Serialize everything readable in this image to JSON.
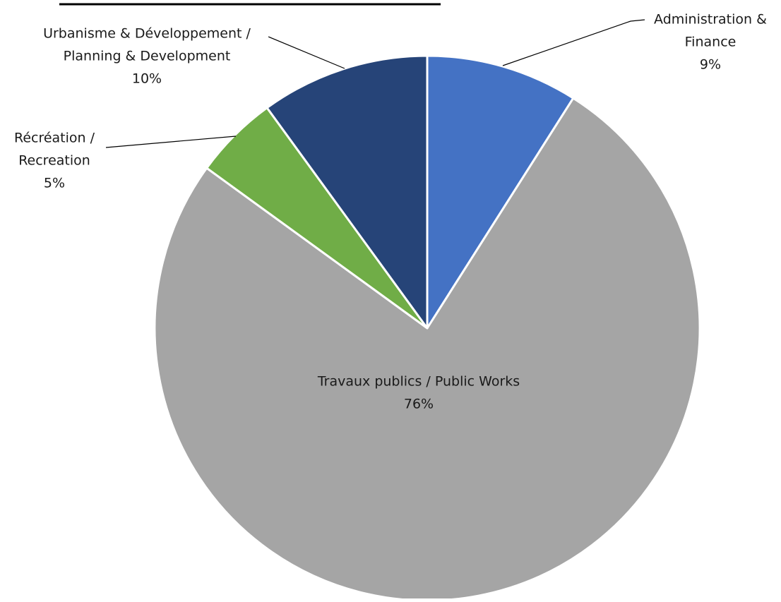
{
  "chart_data": {
    "type": "pie",
    "title": "",
    "slices": [
      {
        "label_lines": [
          "Administration &",
          "Finance"
        ],
        "value": 9,
        "pct_label": "9%",
        "color": "#4472C4"
      },
      {
        "label_lines": [
          "Travaux publics / Public Works"
        ],
        "value": 76,
        "pct_label": "76%",
        "color": "#A5A5A5"
      },
      {
        "label_lines": [
          "Récréation /",
          "Recreation"
        ],
        "value": 5,
        "pct_label": "5%",
        "color": "#70AD47"
      },
      {
        "label_lines": [
          "Urbanisme & Développement /",
          "Planning & Development"
        ],
        "value": 10,
        "pct_label": "10%",
        "color": "#264478"
      }
    ],
    "start_angle_deg": 0,
    "direction": "clockwise",
    "legend": "none",
    "data_labels": "category-and-percent"
  }
}
